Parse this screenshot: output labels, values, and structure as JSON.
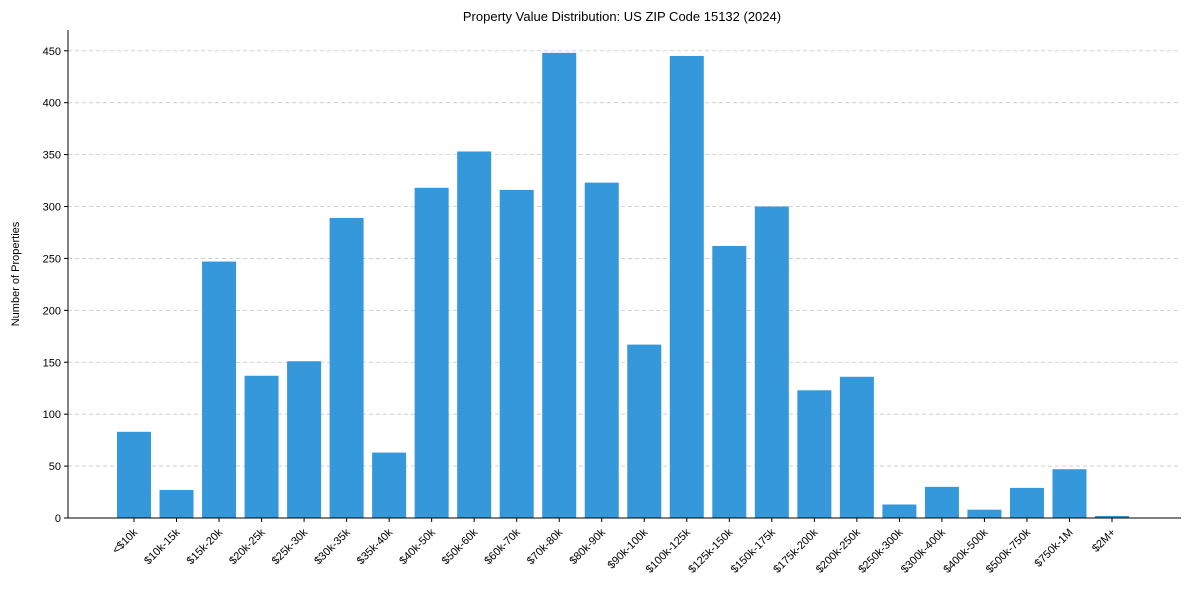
{
  "chart_data": {
    "type": "bar",
    "title": "Property Value Distribution: US ZIP Code 15132 (2024)",
    "xlabel": "",
    "ylabel": "Number of Properties",
    "ylim": [
      0,
      470
    ],
    "yticks": [
      0,
      50,
      100,
      150,
      200,
      250,
      300,
      350,
      400,
      450
    ],
    "grid": "y-dashed",
    "bar_color": "#3498db",
    "categories": [
      "<$10k",
      "$10k-15k",
      "$15k-20k",
      "$20k-25k",
      "$25k-30k",
      "$30k-35k",
      "$35k-40k",
      "$40k-50k",
      "$50k-60k",
      "$60k-70k",
      "$70k-80k",
      "$80k-90k",
      "$90k-100k",
      "$100k-125k",
      "$125k-150k",
      "$150k-175k",
      "$175k-200k",
      "$200k-250k",
      "$250k-300k",
      "$300k-400k",
      "$400k-500k",
      "$500k-750k",
      "$750k-1M",
      "$2M+"
    ],
    "values": [
      83,
      27,
      247,
      137,
      151,
      289,
      63,
      318,
      353,
      316,
      448,
      323,
      167,
      445,
      262,
      300,
      123,
      136,
      13,
      30,
      8,
      29,
      47,
      2
    ]
  }
}
